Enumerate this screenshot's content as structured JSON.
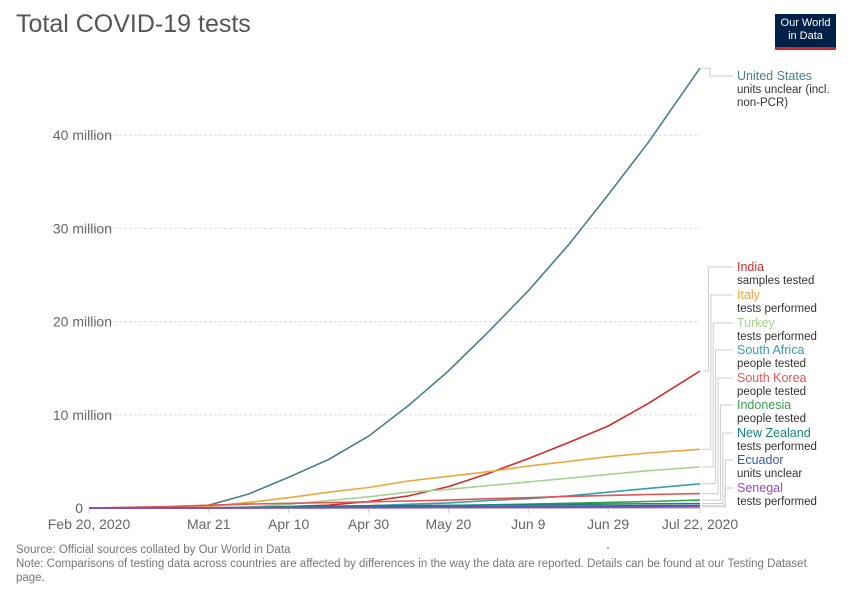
{
  "title": "Total COVID-19 tests",
  "logo": {
    "line1": "Our World",
    "line2": "in Data"
  },
  "footer": {
    "source": "Source: Official sources collated by Our World in Data",
    "note": "Note: Comparisons of testing data across countries are affected by differences in the way the data are reported. Details can be found at our Testing Dataset page."
  },
  "chart_data": {
    "type": "line",
    "title": "Total COVID-19 tests",
    "xlabel": "",
    "ylabel": "",
    "x_ticks": [
      {
        "day": 0,
        "label": "Feb 20, 2020"
      },
      {
        "day": 30,
        "label": "Mar 21"
      },
      {
        "day": 50,
        "label": "Apr 10"
      },
      {
        "day": 70,
        "label": "Apr 30"
      },
      {
        "day": 90,
        "label": "May 20"
      },
      {
        "day": 110,
        "label": "Jun 9"
      },
      {
        "day": 130,
        "label": "Jun 29"
      },
      {
        "day": 153,
        "label": "Jul 22, 2020"
      }
    ],
    "y_ticks": [
      {
        "value": 0,
        "label": "0"
      },
      {
        "value": 10000000,
        "label": "10 million"
      },
      {
        "value": 20000000,
        "label": "20 million"
      },
      {
        "value": 30000000,
        "label": "30 million"
      },
      {
        "value": 40000000,
        "label": "40 million"
      }
    ],
    "xlim": [
      0,
      153
    ],
    "ylim": [
      0,
      47000000
    ],
    "grid": true,
    "legend": "right",
    "series": [
      {
        "name": "United States",
        "sub": "units unclear (incl. non-PCR)",
        "color": "#4c7f8c",
        "x": [
          0,
          20,
          30,
          40,
          50,
          60,
          70,
          80,
          90,
          100,
          110,
          120,
          130,
          140,
          153
        ],
        "y": [
          0,
          50000,
          300000,
          1500000,
          3300000,
          5200000,
          7700000,
          11000000,
          14700000,
          18900000,
          23300000,
          28200000,
          33600000,
          39200000,
          47200000
        ]
      },
      {
        "name": "India",
        "sub": "samples tested",
        "color": "#d42b2b",
        "x": [
          0,
          30,
          50,
          60,
          70,
          80,
          90,
          100,
          110,
          120,
          130,
          140,
          153
        ],
        "y": [
          0,
          10000,
          150000,
          300000,
          700000,
          1300000,
          2300000,
          3700000,
          5300000,
          7000000,
          8800000,
          11200000,
          14700000
        ]
      },
      {
        "name": "Italy",
        "sub": "tests performed",
        "color": "#f0a63a",
        "x": [
          0,
          10,
          20,
          30,
          40,
          50,
          60,
          70,
          80,
          90,
          100,
          110,
          120,
          130,
          140,
          153
        ],
        "y": [
          0,
          10000,
          50000,
          150000,
          600000,
          1100000,
          1700000,
          2200000,
          2900000,
          3400000,
          3900000,
          4500000,
          5000000,
          5500000,
          5900000,
          6300000
        ]
      },
      {
        "name": "Turkey",
        "sub": "tests performed",
        "color": "#a5d38f",
        "x": [
          0,
          30,
          40,
          50,
          60,
          70,
          80,
          90,
          100,
          110,
          120,
          130,
          140,
          153
        ],
        "y": [
          0,
          10000,
          100000,
          400000,
          800000,
          1200000,
          1700000,
          2000000,
          2400000,
          2800000,
          3200000,
          3600000,
          4000000,
          4400000
        ]
      },
      {
        "name": "South Africa",
        "sub": "people tested",
        "color": "#3a9ea5",
        "x": [
          0,
          30,
          50,
          60,
          70,
          80,
          90,
          100,
          110,
          120,
          130,
          140,
          153
        ],
        "y": [
          0,
          10000,
          100000,
          180000,
          250000,
          400000,
          550000,
          800000,
          1000000,
          1300000,
          1700000,
          2100000,
          2600000
        ]
      },
      {
        "name": "South Korea",
        "sub": "people tested",
        "color": "#e05555",
        "x": [
          0,
          10,
          20,
          30,
          40,
          50,
          60,
          70,
          80,
          90,
          100,
          110,
          120,
          130,
          140,
          153
        ],
        "y": [
          0,
          80000,
          150000,
          300000,
          420000,
          500000,
          580000,
          650000,
          750000,
          850000,
          1000000,
          1100000,
          1250000,
          1350000,
          1450000,
          1550000
        ]
      },
      {
        "name": "Indonesia",
        "sub": "people tested",
        "color": "#3a9e4e",
        "x": [
          0,
          40,
          60,
          80,
          100,
          120,
          140,
          153
        ],
        "y": [
          0,
          10000,
          60000,
          180000,
          330000,
          500000,
          700000,
          850000
        ]
      },
      {
        "name": "New Zealand",
        "sub": "tests performed",
        "color": "#138677",
        "x": [
          0,
          30,
          40,
          60,
          80,
          100,
          120,
          140,
          153
        ],
        "y": [
          0,
          20000,
          80000,
          180000,
          250000,
          320000,
          400000,
          450000,
          480000
        ]
      },
      {
        "name": "Ecuador",
        "sub": "units unclear",
        "color": "#3859a8",
        "x": [
          0,
          30,
          60,
          90,
          120,
          153
        ],
        "y": [
          0,
          5000,
          60000,
          120000,
          200000,
          260000
        ]
      },
      {
        "name": "Senegal",
        "sub": "tests performed",
        "color": "#9a48c2",
        "x": [
          0,
          30,
          60,
          90,
          120,
          153
        ],
        "y": [
          0,
          2000,
          20000,
          50000,
          80000,
          110000
        ]
      }
    ]
  }
}
